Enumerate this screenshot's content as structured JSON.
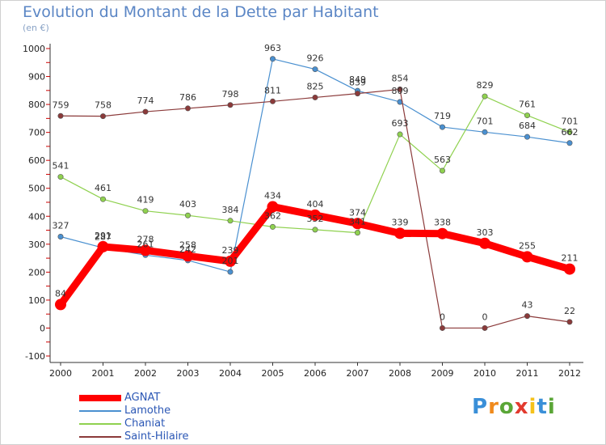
{
  "title": "Evolution du Montant de la Dette par Habitant",
  "unit_label": "(en €)",
  "logo_text": "Proxiti",
  "chart_data": {
    "type": "line",
    "title": "Evolution du Montant de la Dette par Habitant",
    "ylabel": "(en €)",
    "xlabel": "",
    "ylim": [
      -100,
      1000
    ],
    "yticks": [
      -100,
      0,
      100,
      200,
      300,
      400,
      500,
      600,
      700,
      800,
      900,
      1000
    ],
    "categories": [
      "2000",
      "2001",
      "2002",
      "2003",
      "2004",
      "2005",
      "2006",
      "2007",
      "2008",
      "2009",
      "2010",
      "2011",
      "2012"
    ],
    "grid": false,
    "legend_position": "bottom-left",
    "series": [
      {
        "name": "AGNAT",
        "color": "#ff0000",
        "values": [
          84,
          291,
          278,
          258,
          239,
          434,
          404,
          374,
          339,
          338,
          303,
          255,
          211
        ]
      },
      {
        "name": "Lamothe",
        "color": "#4a90d0",
        "values": [
          327,
          287,
          261,
          242,
          201,
          963,
          926,
          849,
          809,
          719,
          701,
          684,
          662
        ]
      },
      {
        "name": "Chaniat",
        "color": "#8fd14f",
        "values": [
          541,
          461,
          419,
          403,
          384,
          362,
          352,
          341,
          693,
          563,
          829,
          761,
          701
        ]
      },
      {
        "name": "Saint-Hilaire",
        "color": "#8b3a3a",
        "values": [
          759,
          758,
          774,
          786,
          798,
          811,
          825,
          839,
          854,
          0,
          0,
          43,
          22
        ]
      }
    ]
  }
}
